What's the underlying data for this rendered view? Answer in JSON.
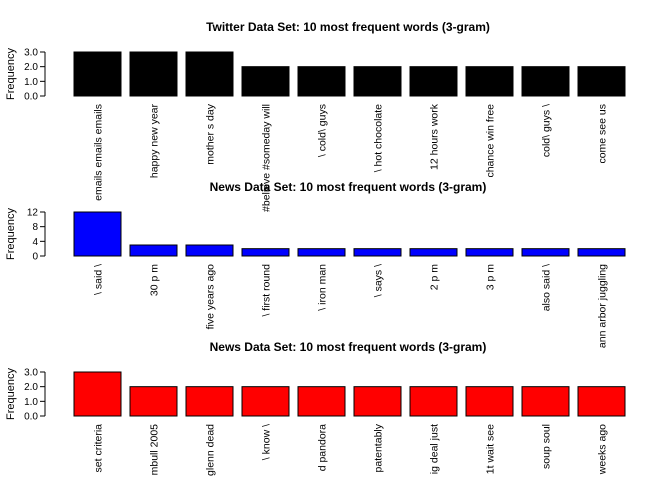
{
  "chart_data": [
    {
      "type": "bar",
      "title": "Twitter Data Set: 10 most frequent words (3-gram)",
      "ylabel": "Frequency",
      "categories": [
        "emails emails emails",
        "happy new year",
        "mother s day",
        "#believe #someday will",
        "\\ cold\\ guys",
        "\\ hot chocolate",
        "12 hours work",
        "chance win free",
        "cold\\ guys \\",
        "come see us"
      ],
      "values": [
        3,
        3,
        3,
        2,
        2,
        2,
        2,
        2,
        2,
        2
      ],
      "yticks": [
        "0.0",
        "1.0",
        "2.0",
        "3.0"
      ],
      "ylim": [
        0,
        3
      ],
      "bar_color": "#000000"
    },
    {
      "type": "bar",
      "title": "News Data Set: 10 most frequent words (3-gram)",
      "ylabel": "Frequency",
      "categories": [
        "\\ said \\",
        "30 p m",
        "five years ago",
        "\\ first round",
        "\\ iron man",
        "\\ says \\",
        "2 p m",
        "3 p m",
        "also said \\",
        "ann arbor juggling"
      ],
      "values": [
        12,
        3,
        3,
        2,
        2,
        2,
        2,
        2,
        2,
        2
      ],
      "yticks": [
        "0",
        "4",
        "8",
        "12"
      ],
      "ylim": [
        0,
        12
      ],
      "bar_color": "#0000ff"
    },
    {
      "type": "bar",
      "title": "News Data Set: 10 most frequent words (3-gram)",
      "ylabel": "Frequency",
      "categories": [
        "set criteria",
        "mbull 2005",
        "glenn dead",
        "\\ know \\",
        "d pandora",
        "patentably",
        "ig deal just",
        "1t wait see",
        "soup soul",
        "weeks ago"
      ],
      "values": [
        3,
        2,
        2,
        2,
        2,
        2,
        2,
        2,
        2,
        2
      ],
      "yticks": [
        "0.0",
        "1.0",
        "2.0",
        "3.0"
      ],
      "ylim": [
        0,
        3
      ],
      "bar_color": "#ff0000"
    }
  ]
}
